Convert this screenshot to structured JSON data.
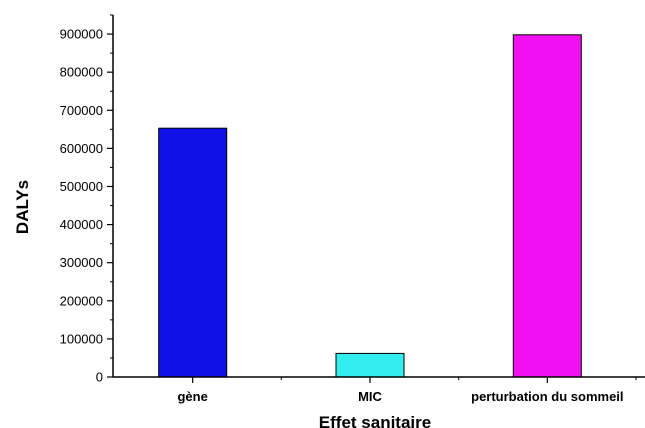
{
  "chart_data": {
    "type": "bar",
    "categories": [
      "gène",
      "MIC",
      "perturbation du sommeil"
    ],
    "values": [
      653000,
      62000,
      898000
    ],
    "colors": [
      "#1010e8",
      "#33eeee",
      "#f010f0"
    ],
    "xlabel": "Effet sanitaire",
    "ylabel": "DALYs",
    "ylim": [
      0,
      950000
    ],
    "yticks": [
      0,
      100000,
      200000,
      300000,
      400000,
      500000,
      600000,
      700000,
      800000,
      900000
    ],
    "grid": false
  }
}
